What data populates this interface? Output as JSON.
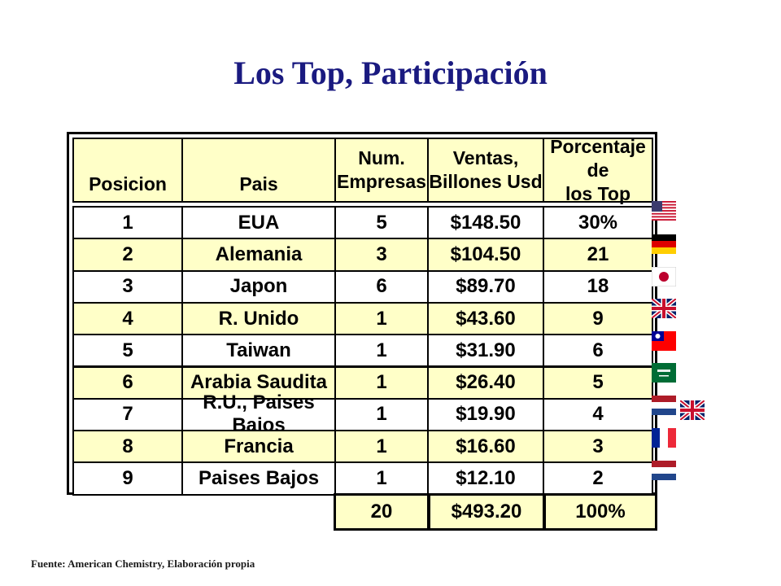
{
  "title": "Los Top, Participación",
  "source": "Fuente: American Chemistry, Elaboración propia",
  "table": {
    "headers": [
      "Posicion",
      "Pais",
      "Num.\nEmpresas",
      "Ventas,\nBillones Usd",
      "Porcentaje de\nlos Top"
    ],
    "rows": [
      {
        "pos": "1",
        "pais": "EUA",
        "num": "5",
        "ventas": "$148.50",
        "pct": "30%"
      },
      {
        "pos": "2",
        "pais": "Alemania",
        "num": "3",
        "ventas": "$104.50",
        "pct": "21"
      },
      {
        "pos": "3",
        "pais": "Japon",
        "num": "6",
        "ventas": "$89.70",
        "pct": "18"
      },
      {
        "pos": "4",
        "pais": "R. Unido",
        "num": "1",
        "ventas": "$43.60",
        "pct": "9"
      },
      {
        "pos": "5",
        "pais": "Taiwan",
        "num": "1",
        "ventas": "$31.90",
        "pct": "6"
      },
      {
        "pos": "6",
        "pais": "Arabia Saudita",
        "num": "1",
        "ventas": "$26.40",
        "pct": "5"
      },
      {
        "pos": "7",
        "pais": "R.U., Paises Bajos",
        "num": "1",
        "ventas": "$19.90",
        "pct": "4"
      },
      {
        "pos": "8",
        "pais": "Francia",
        "num": "1",
        "ventas": "$16.60",
        "pct": "3"
      },
      {
        "pos": "9",
        "pais": "Paises Bajos",
        "num": "1",
        "ventas": "$12.10",
        "pct": "2"
      }
    ],
    "total": {
      "num": "20",
      "ventas": "$493.20",
      "pct": "100%"
    }
  },
  "flags": [
    "usa-flag-icon",
    "germany-flag-icon",
    "japan-flag-icon",
    "uk-flag-icon",
    "taiwan-flag-icon",
    "saudi-arabia-flag-icon",
    "netherlands-flag-icon",
    "uk-flag-icon",
    "france-flag-icon",
    "netherlands-flag-icon"
  ],
  "colors": {
    "title": "#1a1a80",
    "row_highlight": "#ffffc8"
  }
}
